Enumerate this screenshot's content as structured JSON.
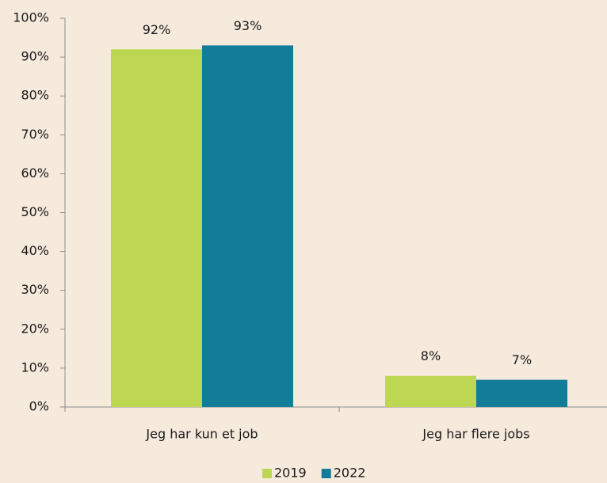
{
  "chart_data": {
    "type": "bar",
    "categories": [
      "Jeg har kun et job",
      "Jeg har flere jobs"
    ],
    "series": [
      {
        "name": "2019",
        "color": "#bdd753",
        "values": [
          92,
          8
        ],
        "value_labels": [
          "92%",
          "8%"
        ]
      },
      {
        "name": "2022",
        "color": "#127c99",
        "values": [
          93,
          7
        ],
        "value_labels": [
          "93%",
          "7%"
        ]
      }
    ],
    "ylim": [
      0,
      100
    ],
    "yticks": [
      {
        "value": 0,
        "label": "0%"
      },
      {
        "value": 10,
        "label": "10%"
      },
      {
        "value": 20,
        "label": "20%"
      },
      {
        "value": 30,
        "label": "30%"
      },
      {
        "value": 40,
        "label": "40%"
      },
      {
        "value": 50,
        "label": "50%"
      },
      {
        "value": 60,
        "label": "60%"
      },
      {
        "value": 70,
        "label": "70%"
      },
      {
        "value": 80,
        "label": "80%"
      },
      {
        "value": 90,
        "label": "90%"
      },
      {
        "value": 100,
        "label": "100%"
      }
    ],
    "grid": false,
    "legend": "bottom"
  }
}
